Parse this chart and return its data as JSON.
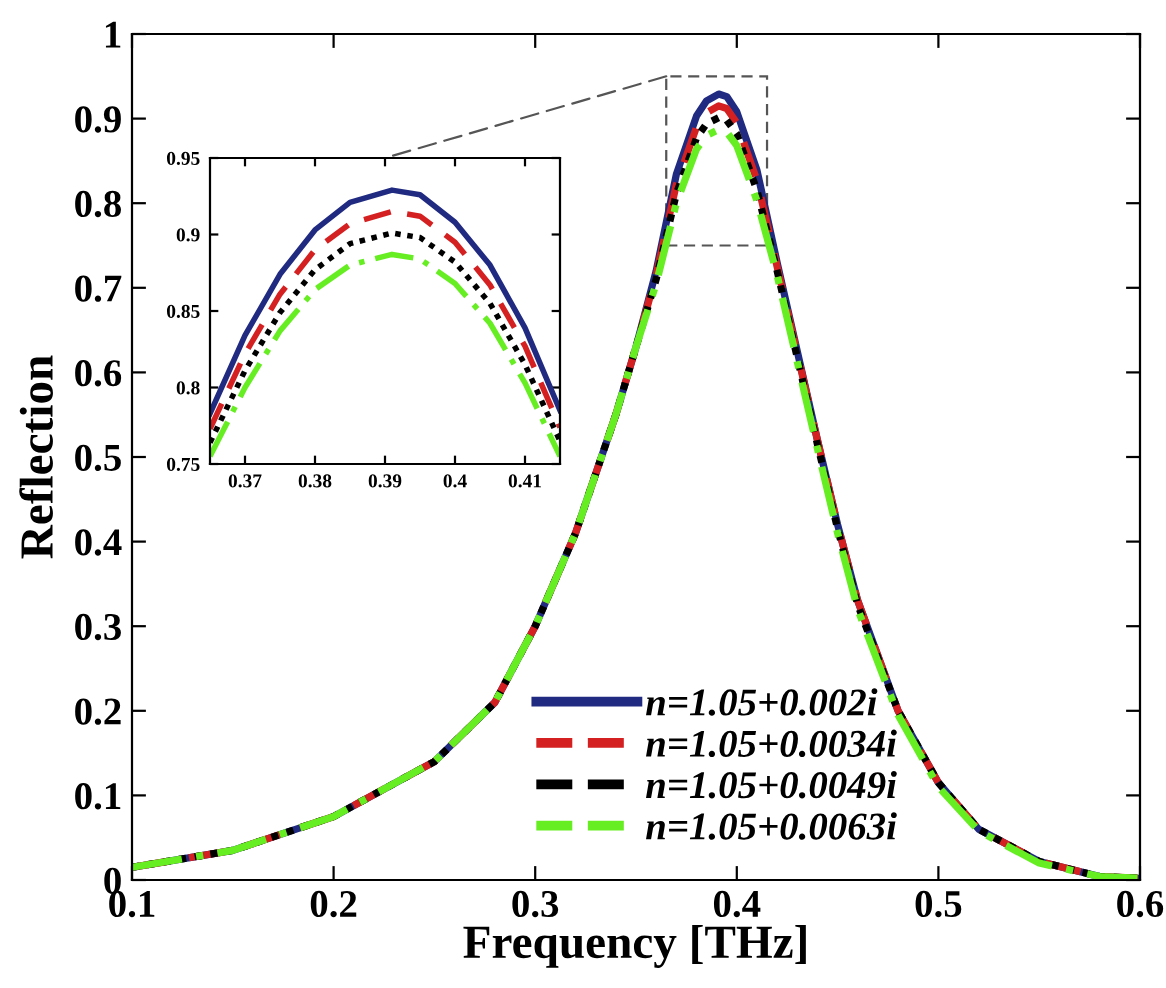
{
  "chart_data": [
    {
      "type": "line",
      "xlabel": "Frequency [THz]",
      "ylabel": "Reflection",
      "xlim": [
        0.1,
        0.6
      ],
      "ylim": [
        0,
        1
      ],
      "xticks": [
        0.1,
        0.2,
        0.3,
        0.4,
        0.5,
        0.6
      ],
      "yticks": [
        0,
        0.1,
        0.2,
        0.3,
        0.4,
        0.5,
        0.6,
        0.7,
        0.8,
        0.9,
        1
      ],
      "grid": false,
      "legend": "bottom",
      "marker": "none",
      "x": [
        0.1,
        0.15,
        0.2,
        0.25,
        0.28,
        0.3,
        0.32,
        0.34,
        0.35,
        0.36,
        0.37,
        0.38,
        0.385,
        0.391,
        0.395,
        0.4,
        0.41,
        0.42,
        0.44,
        0.45,
        0.46,
        0.48,
        0.5,
        0.52,
        0.55,
        0.58,
        0.6
      ],
      "series": [
        {
          "name": "n=1.05+0.002i",
          "color": "#1f2a80",
          "line_style": "solid",
          "values": [
            0.015,
            0.035,
            0.075,
            0.14,
            0.21,
            0.3,
            0.41,
            0.55,
            0.63,
            0.72,
            0.834,
            0.903,
            0.921,
            0.929,
            0.926,
            0.908,
            0.839,
            0.73,
            0.52,
            0.42,
            0.33,
            0.2,
            0.115,
            0.06,
            0.022,
            0.004,
            0.002
          ]
        },
        {
          "name": "n=1.05+0.0034i",
          "color": "#d42020",
          "line_style": "dashed",
          "values": [
            0.015,
            0.035,
            0.075,
            0.14,
            0.21,
            0.3,
            0.41,
            0.55,
            0.63,
            0.715,
            0.822,
            0.89,
            0.907,
            0.915,
            0.912,
            0.895,
            0.827,
            0.725,
            0.52,
            0.42,
            0.33,
            0.2,
            0.115,
            0.06,
            0.022,
            0.004,
            0.002
          ]
        },
        {
          "name": "n=1.05+0.0049i",
          "color": "#000000",
          "line_style": "dotted",
          "values": [
            0.015,
            0.035,
            0.075,
            0.14,
            0.21,
            0.3,
            0.41,
            0.55,
            0.63,
            0.71,
            0.811,
            0.877,
            0.894,
            0.901,
            0.898,
            0.882,
            0.815,
            0.72,
            0.515,
            0.415,
            0.325,
            0.2,
            0.115,
            0.06,
            0.022,
            0.004,
            0.002
          ]
        },
        {
          "name": "n=1.05+0.0063i",
          "color": "#66ee22",
          "line_style": "dashdot",
          "values": [
            0.015,
            0.035,
            0.075,
            0.14,
            0.21,
            0.3,
            0.41,
            0.55,
            0.63,
            0.705,
            0.8,
            0.864,
            0.88,
            0.887,
            0.884,
            0.868,
            0.803,
            0.715,
            0.51,
            0.41,
            0.32,
            0.195,
            0.11,
            0.058,
            0.02,
            0.004,
            0.002
          ]
        }
      ]
    },
    {
      "type": "line",
      "xlim": [
        0.365,
        0.415
      ],
      "ylim": [
        0.75,
        0.95
      ],
      "xticks": [
        0.37,
        0.38,
        0.39,
        0.4,
        0.41
      ],
      "yticks": [
        0.75,
        0.8,
        0.85,
        0.9,
        0.95
      ],
      "grid": false,
      "legend": false,
      "marker": "none",
      "x": [
        0.365,
        0.37,
        0.375,
        0.38,
        0.385,
        0.391,
        0.395,
        0.4,
        0.405,
        0.41,
        0.415
      ],
      "series": [
        {
          "color": "#1f2a80",
          "line_style": "solid",
          "values": [
            0.783,
            0.834,
            0.874,
            0.903,
            0.921,
            0.929,
            0.926,
            0.908,
            0.88,
            0.839,
            0.785
          ]
        },
        {
          "color": "#d42020",
          "line_style": "dashed",
          "values": [
            0.773,
            0.822,
            0.861,
            0.89,
            0.907,
            0.915,
            0.912,
            0.895,
            0.867,
            0.827,
            0.774
          ]
        },
        {
          "color": "#000000",
          "line_style": "dotted",
          "values": [
            0.764,
            0.811,
            0.849,
            0.877,
            0.894,
            0.901,
            0.898,
            0.882,
            0.855,
            0.815,
            0.765
          ]
        },
        {
          "color": "#66ee22",
          "line_style": "dashdot",
          "values": [
            0.755,
            0.8,
            0.837,
            0.864,
            0.88,
            0.887,
            0.884,
            0.868,
            0.842,
            0.803,
            0.755
          ]
        }
      ]
    }
  ]
}
